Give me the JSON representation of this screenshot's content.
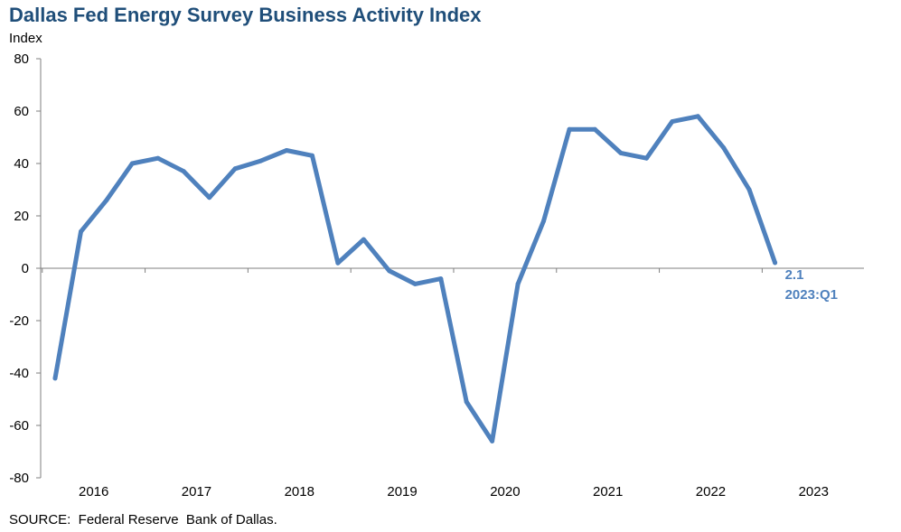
{
  "title": "Dallas Fed Energy Survey Business Activity Index",
  "unit_label": "Index",
  "source": "SOURCE:  Federal Reserve  Bank of Dallas.",
  "annotation": {
    "value": "2.1",
    "period": "2023:Q1"
  },
  "colors": {
    "line": "#4f81bd",
    "title": "#1f4e79",
    "annotation": "#4f81bd",
    "axis": "#7f7f7f"
  },
  "chart_data": {
    "type": "line",
    "title": "Dallas Fed Energy Survey Business Activity Index",
    "ylabel": "Index",
    "xlabel": "",
    "ylim": [
      -80,
      80
    ],
    "yticks": [
      80,
      60,
      40,
      20,
      0,
      -20,
      -40,
      -60,
      -80
    ],
    "xtick_labels": [
      "2016",
      "2017",
      "2018",
      "2019",
      "2020",
      "2021",
      "2022",
      "2023"
    ],
    "grid": false,
    "legend": "none",
    "series": [
      {
        "x": [
          "2016:Q1",
          "2016:Q2",
          "2016:Q3",
          "2016:Q4",
          "2017:Q1",
          "2017:Q2",
          "2017:Q3",
          "2017:Q4",
          "2018:Q1",
          "2018:Q2",
          "2018:Q3",
          "2018:Q4",
          "2019:Q1",
          "2019:Q2",
          "2019:Q3",
          "2019:Q4",
          "2020:Q1",
          "2020:Q2",
          "2020:Q3",
          "2020:Q4",
          "2021:Q1",
          "2021:Q2",
          "2021:Q3",
          "2021:Q4",
          "2022:Q1",
          "2022:Q2",
          "2022:Q3",
          "2022:Q4",
          "2023:Q1"
        ],
        "values": [
          -42,
          14,
          26,
          40,
          42,
          37,
          27,
          38,
          41,
          45,
          43,
          2,
          11,
          -1,
          -6,
          -4,
          -51,
          -66,
          -6,
          18,
          53,
          53,
          44,
          42,
          56,
          58,
          46,
          30,
          2.1
        ]
      }
    ]
  }
}
